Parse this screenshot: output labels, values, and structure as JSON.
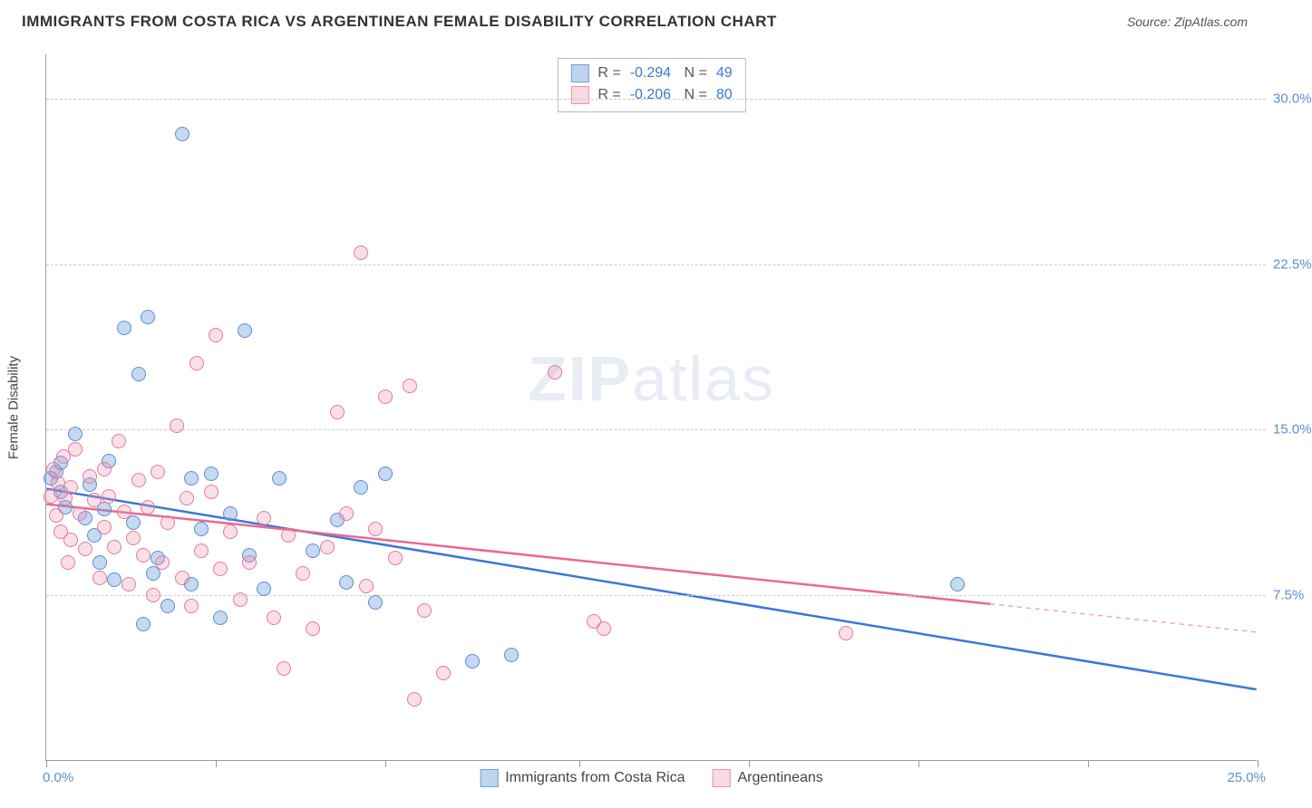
{
  "header": {
    "title": "IMMIGRANTS FROM COSTA RICA VS ARGENTINEAN FEMALE DISABILITY CORRELATION CHART",
    "source_label": "Source:",
    "source_name": "ZipAtlas.com"
  },
  "watermark": {
    "zip": "ZIP",
    "atlas": "atlas"
  },
  "chart": {
    "type": "scatter",
    "background_color": "#ffffff",
    "axis_color": "#999999",
    "grid_color": "#cccccc",
    "text_color": "#444444",
    "value_color": "#5b8dd6",
    "y_axis_label": "Female Disability",
    "x_domain": [
      0,
      25
    ],
    "y_domain": [
      0,
      32
    ],
    "y_ticks": [
      7.5,
      15.0,
      22.5,
      30.0
    ],
    "y_tick_labels": [
      "7.5%",
      "15.0%",
      "22.5%",
      "30.0%"
    ],
    "x_origin_label": "0.0%",
    "x_end_label": "25.0%",
    "x_ticks": [
      0,
      3.5,
      7,
      11,
      14.5,
      18,
      21.5,
      25
    ],
    "series": [
      {
        "name": "Immigrants from Costa Rica",
        "R": "-0.294",
        "N": "49",
        "point_fill": "rgba(110,160,220,0.4)",
        "point_stroke": "#5b8dd6",
        "line_color": "#3a78d6",
        "line": {
          "x1": 0,
          "y1": 12.3,
          "x2": 25,
          "y2": 3.2,
          "solid_until_x": 25
        },
        "points": [
          [
            0.1,
            12.8
          ],
          [
            0.2,
            13.1
          ],
          [
            0.3,
            12.2
          ],
          [
            0.3,
            13.5
          ],
          [
            0.4,
            11.5
          ],
          [
            0.6,
            14.8
          ],
          [
            0.8,
            11.0
          ],
          [
            0.9,
            12.5
          ],
          [
            1.0,
            10.2
          ],
          [
            1.1,
            9.0
          ],
          [
            1.2,
            11.4
          ],
          [
            1.3,
            13.6
          ],
          [
            1.4,
            8.2
          ],
          [
            1.6,
            19.6
          ],
          [
            1.8,
            10.8
          ],
          [
            1.9,
            17.5
          ],
          [
            2.0,
            6.2
          ],
          [
            2.1,
            20.1
          ],
          [
            2.2,
            8.5
          ],
          [
            2.3,
            9.2
          ],
          [
            2.5,
            7.0
          ],
          [
            2.8,
            28.4
          ],
          [
            3.0,
            12.8
          ],
          [
            3.0,
            8.0
          ],
          [
            3.2,
            10.5
          ],
          [
            3.4,
            13.0
          ],
          [
            3.6,
            6.5
          ],
          [
            3.8,
            11.2
          ],
          [
            4.1,
            19.5
          ],
          [
            4.2,
            9.3
          ],
          [
            4.5,
            7.8
          ],
          [
            4.8,
            12.8
          ],
          [
            5.5,
            9.5
          ],
          [
            6.0,
            10.9
          ],
          [
            6.2,
            8.1
          ],
          [
            6.5,
            12.4
          ],
          [
            6.8,
            7.2
          ],
          [
            7.0,
            13.0
          ],
          [
            8.8,
            4.5
          ],
          [
            9.6,
            4.8
          ],
          [
            18.8,
            8.0
          ]
        ]
      },
      {
        "name": "Argentineans",
        "R": "-0.206",
        "N": "80",
        "point_fill": "rgba(240,150,175,0.3)",
        "point_stroke": "#e57a9a",
        "line_color": "#e86a8f",
        "line": {
          "x1": 0,
          "y1": 11.6,
          "x2": 25,
          "y2": 5.8,
          "solid_until_x": 19.5
        },
        "points": [
          [
            0.1,
            12.0
          ],
          [
            0.15,
            13.2
          ],
          [
            0.2,
            11.1
          ],
          [
            0.25,
            12.6
          ],
          [
            0.3,
            10.4
          ],
          [
            0.35,
            13.8
          ],
          [
            0.4,
            11.9
          ],
          [
            0.45,
            9.0
          ],
          [
            0.5,
            12.4
          ],
          [
            0.5,
            10.0
          ],
          [
            0.6,
            14.1
          ],
          [
            0.7,
            11.2
          ],
          [
            0.8,
            9.6
          ],
          [
            0.9,
            12.9
          ],
          [
            1.0,
            11.8
          ],
          [
            1.1,
            8.3
          ],
          [
            1.2,
            10.6
          ],
          [
            1.2,
            13.2
          ],
          [
            1.3,
            12.0
          ],
          [
            1.4,
            9.7
          ],
          [
            1.5,
            14.5
          ],
          [
            1.6,
            11.3
          ],
          [
            1.7,
            8.0
          ],
          [
            1.8,
            10.1
          ],
          [
            1.9,
            12.7
          ],
          [
            2.0,
            9.3
          ],
          [
            2.1,
            11.5
          ],
          [
            2.2,
            7.5
          ],
          [
            2.3,
            13.1
          ],
          [
            2.4,
            9.0
          ],
          [
            2.5,
            10.8
          ],
          [
            2.7,
            15.2
          ],
          [
            2.8,
            8.3
          ],
          [
            2.9,
            11.9
          ],
          [
            3.0,
            7.0
          ],
          [
            3.1,
            18.0
          ],
          [
            3.2,
            9.5
          ],
          [
            3.4,
            12.2
          ],
          [
            3.5,
            19.3
          ],
          [
            3.6,
            8.7
          ],
          [
            3.8,
            10.4
          ],
          [
            4.0,
            7.3
          ],
          [
            4.2,
            9.0
          ],
          [
            4.5,
            11.0
          ],
          [
            4.7,
            6.5
          ],
          [
            4.9,
            4.2
          ],
          [
            5.0,
            10.2
          ],
          [
            5.3,
            8.5
          ],
          [
            5.5,
            6.0
          ],
          [
            5.8,
            9.7
          ],
          [
            6.0,
            15.8
          ],
          [
            6.2,
            11.2
          ],
          [
            6.5,
            23.0
          ],
          [
            6.6,
            7.9
          ],
          [
            6.8,
            10.5
          ],
          [
            7.0,
            16.5
          ],
          [
            7.2,
            9.2
          ],
          [
            7.5,
            17.0
          ],
          [
            7.6,
            2.8
          ],
          [
            7.8,
            6.8
          ],
          [
            8.2,
            4.0
          ],
          [
            10.5,
            17.6
          ],
          [
            11.3,
            6.3
          ],
          [
            11.5,
            6.0
          ],
          [
            16.5,
            5.8
          ]
        ]
      }
    ]
  }
}
